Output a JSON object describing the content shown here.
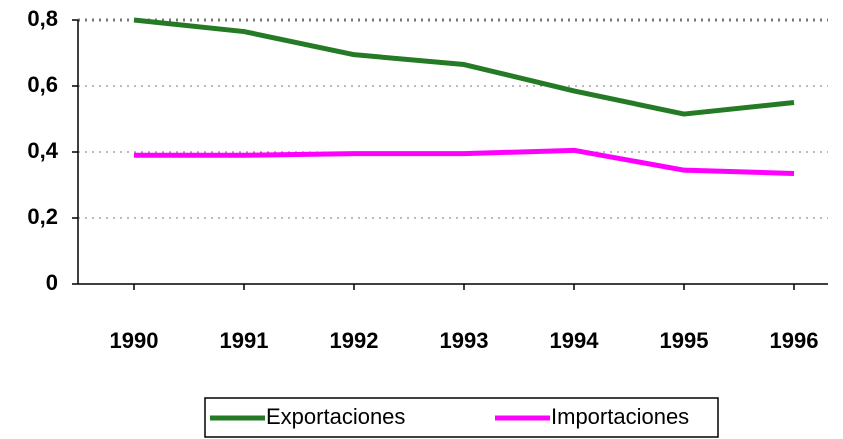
{
  "chart_data": {
    "type": "line",
    "categories": [
      "1990",
      "1991",
      "1992",
      "1993",
      "1994",
      "1995",
      "1996"
    ],
    "series": [
      {
        "name": "Exportaciones",
        "color": "#257a25",
        "values": [
          0.8,
          0.765,
          0.695,
          0.665,
          0.585,
          0.515,
          0.55
        ]
      },
      {
        "name": "Importaciones",
        "color": "#ff00ff",
        "values": [
          0.39,
          0.39,
          0.395,
          0.395,
          0.405,
          0.345,
          0.335
        ]
      }
    ],
    "ylim": [
      0,
      0.8
    ],
    "yticks": [
      0,
      {
        "value": 0.2,
        "label": "0,2"
      },
      {
        "value": 0.4,
        "label": "0,4"
      },
      {
        "value": 0.6,
        "label": "0,6"
      },
      {
        "value": 0.8,
        "label": "0,8"
      }
    ],
    "grid": true,
    "legend": "bottom"
  }
}
